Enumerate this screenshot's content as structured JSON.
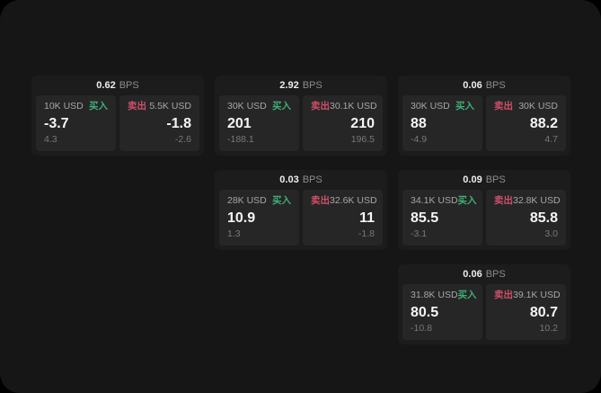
{
  "colors": {
    "buy": "#3fae76",
    "sell": "#ce4f69"
  },
  "cards": [
    {
      "bps": "0.62",
      "unit": "BPS",
      "buy": {
        "side": "买入",
        "notional": "10K USD",
        "price": "-3.7",
        "delta": "4.3"
      },
      "sell": {
        "side": "卖出",
        "notional": "5.5K USD",
        "price": "-1.8",
        "delta": "-2.6"
      }
    },
    {
      "bps": "2.92",
      "unit": "BPS",
      "buy": {
        "side": "买入",
        "notional": "30K USD",
        "price": "201",
        "delta": "-188.1"
      },
      "sell": {
        "side": "卖出",
        "notional": "30.1K USD",
        "price": "210",
        "delta": "196.5"
      }
    },
    {
      "bps": "0.06",
      "unit": "BPS",
      "buy": {
        "side": "买入",
        "notional": "30K USD",
        "price": "88",
        "delta": "-4.9"
      },
      "sell": {
        "side": "卖出",
        "notional": "30K USD",
        "price": "88.2",
        "delta": "4.7"
      }
    },
    {
      "bps": "0.03",
      "unit": "BPS",
      "buy": {
        "side": "买入",
        "notional": "28K USD",
        "price": "10.9",
        "delta": "1.3"
      },
      "sell": {
        "side": "卖出",
        "notional": "32.6K USD",
        "price": "11",
        "delta": "-1.8"
      }
    },
    {
      "bps": "0.09",
      "unit": "BPS",
      "buy": {
        "side": "买入",
        "notional": "34.1K USD",
        "price": "85.5",
        "delta": "-3.1"
      },
      "sell": {
        "side": "卖出",
        "notional": "32.8K USD",
        "price": "85.8",
        "delta": "3.0"
      }
    },
    {
      "bps": "0.06",
      "unit": "BPS",
      "buy": {
        "side": "买入",
        "notional": "31.8K USD",
        "price": "80.5",
        "delta": "-10.8"
      },
      "sell": {
        "side": "卖出",
        "notional": "39.1K USD",
        "price": "80.7",
        "delta": "10.2"
      }
    }
  ]
}
